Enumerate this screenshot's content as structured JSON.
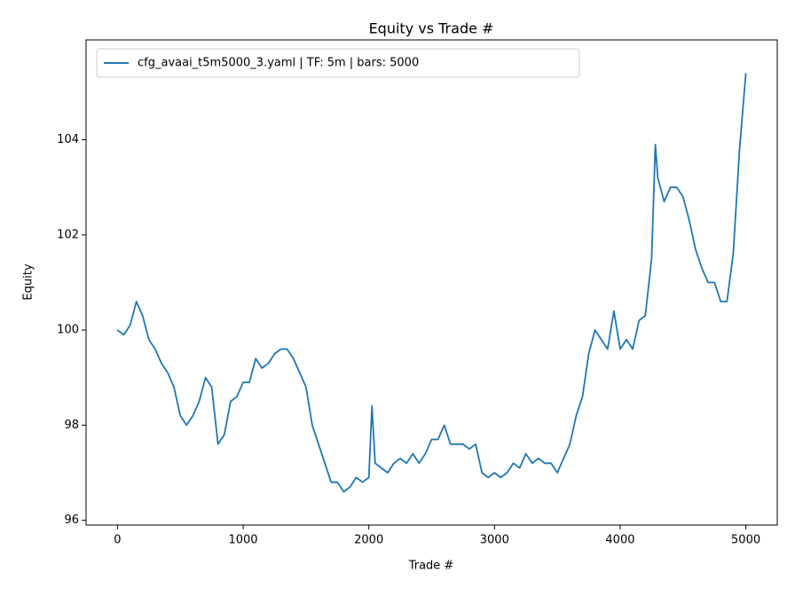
{
  "chart_data": {
    "type": "line",
    "title": "Equity vs Trade #",
    "x_label": "Trade #",
    "y_label": "Equity",
    "x": [
      0,
      50,
      100,
      150,
      200,
      250,
      300,
      350,
      400,
      450,
      500,
      550,
      600,
      650,
      700,
      750,
      800,
      850,
      900,
      950,
      1000,
      1050,
      1100,
      1150,
      1200,
      1250,
      1300,
      1350,
      1400,
      1450,
      1500,
      1550,
      1600,
      1650,
      1700,
      1750,
      1800,
      1850,
      1900,
      1950,
      2000,
      2025,
      2050,
      2100,
      2150,
      2200,
      2250,
      2300,
      2350,
      2400,
      2450,
      2500,
      2550,
      2600,
      2650,
      2700,
      2750,
      2800,
      2850,
      2900,
      2950,
      3000,
      3050,
      3100,
      3150,
      3200,
      3250,
      3300,
      3350,
      3400,
      3450,
      3500,
      3550,
      3600,
      3650,
      3700,
      3750,
      3800,
      3850,
      3900,
      3950,
      4000,
      4050,
      4100,
      4150,
      4200,
      4250,
      4280,
      4300,
      4350,
      4400,
      4450,
      4500,
      4550,
      4600,
      4650,
      4700,
      4750,
      4800,
      4850,
      4900,
      4950,
      5000
    ],
    "series": [
      {
        "name": "cfg_avaai_t5m5000_3.yaml | TF: 5m | bars: 5000",
        "color": "#1f77b4",
        "values": [
          100.0,
          99.9,
          100.1,
          100.6,
          100.3,
          99.8,
          99.6,
          99.3,
          99.1,
          98.8,
          98.2,
          98.0,
          98.2,
          98.5,
          99.0,
          98.8,
          97.6,
          97.8,
          98.5,
          98.6,
          98.9,
          98.9,
          99.4,
          99.2,
          99.3,
          99.5,
          99.6,
          99.6,
          99.4,
          99.1,
          98.8,
          98.0,
          97.6,
          97.2,
          96.8,
          96.8,
          96.6,
          96.7,
          96.9,
          96.8,
          96.9,
          98.4,
          97.2,
          97.1,
          97.0,
          97.2,
          97.3,
          97.2,
          97.4,
          97.2,
          97.4,
          97.7,
          97.7,
          98.0,
          97.6,
          97.6,
          97.6,
          97.5,
          97.6,
          97.0,
          96.9,
          97.0,
          96.9,
          97.0,
          97.2,
          97.1,
          97.4,
          97.2,
          97.3,
          97.2,
          97.2,
          97.0,
          97.3,
          97.6,
          98.2,
          98.6,
          99.5,
          100.0,
          99.8,
          99.6,
          100.4,
          99.6,
          99.8,
          99.6,
          100.2,
          100.3,
          101.5,
          103.9,
          103.2,
          102.7,
          103.0,
          103.0,
          102.8,
          102.3,
          101.7,
          101.3,
          101.0,
          101.0,
          100.6,
          100.6,
          101.6,
          103.8,
          105.4
        ]
      }
    ],
    "xlim": [
      -250,
      5250
    ],
    "xticks": [
      0,
      1000,
      2000,
      3000,
      4000,
      5000
    ],
    "ylim": [
      95.9,
      106.1
    ],
    "yticks": [
      96,
      98,
      100,
      102,
      104
    ],
    "legend": "upper left",
    "grid": false
  }
}
